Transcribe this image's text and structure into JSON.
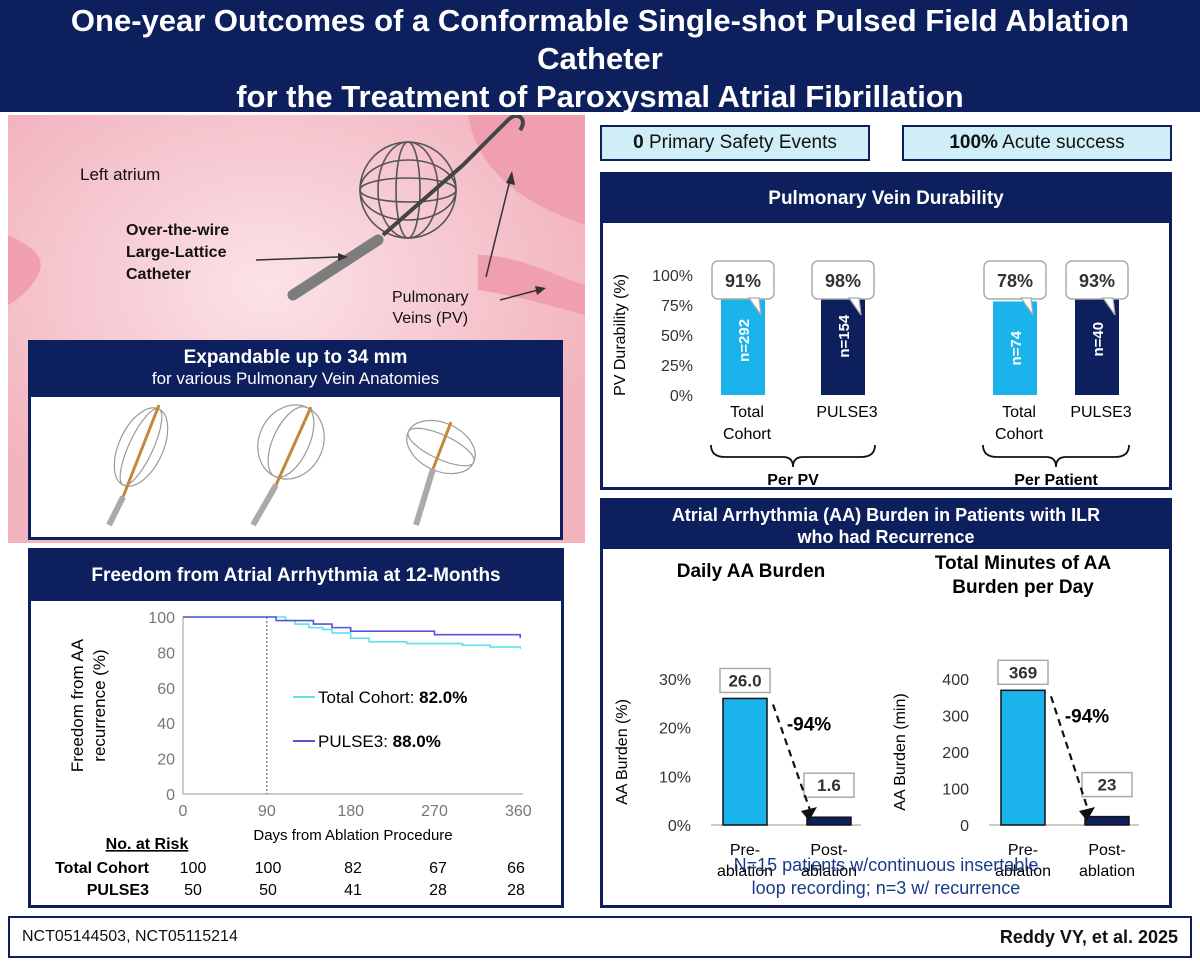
{
  "title": {
    "line1": "One-year Outcomes of a Conformable Single-shot Pulsed Field Ablation",
    "line2": "Catheter",
    "line3": "for the Treatment of Paroxysmal Atrial Fibrillation"
  },
  "illustration": {
    "left_atrium": "Left atrium",
    "catheter_line1": "Over-the-wire",
    "catheter_line2": "Large-Lattice",
    "catheter_line3": "Catheter",
    "pv_line1": "Pulmonary",
    "pv_line2": "Veins (PV)"
  },
  "expandable": {
    "heading": "Expandable up to 34 mm",
    "subheading": "for various Pulmonary Vein Anatomies"
  },
  "stats": {
    "safety_value": "0",
    "safety_label": "Primary Safety Events",
    "acute_value": "100%",
    "acute_label": "Acute success"
  },
  "footer": {
    "trials": "NCT05144503, NCT05115214",
    "citation": "Reddy VY, et al. 2025"
  },
  "colors": {
    "navy": "#0d1f5c",
    "light_blue": "#1ab3ec",
    "cyan_line": "#5fe0ec",
    "purple_line": "#5a55d8"
  },
  "chart_data": [
    {
      "type": "bar",
      "title": "Pulmonary Vein Durability",
      "ylabel": "PV Durability (%)",
      "ylim": [
        0,
        100
      ],
      "yticks": [
        "100%",
        "75%",
        "50%",
        "25%",
        "0%"
      ],
      "groups": [
        {
          "label": "Per PV",
          "bars": [
            {
              "name_line1": "Total",
              "name_line2": "Cohort",
              "value": 91,
              "value_label": "91%",
              "n_label": "n=292",
              "color": "light"
            },
            {
              "name_line1": "PULSE3",
              "name_line2": "",
              "value": 98,
              "value_label": "98%",
              "n_label": "n=154",
              "color": "navy"
            }
          ]
        },
        {
          "label": "Per Patient",
          "bars": [
            {
              "name_line1": "Total",
              "name_line2": "Cohort",
              "value": 78,
              "value_label": "78%",
              "n_label": "n=74",
              "color": "light"
            },
            {
              "name_line1": "PULSE3",
              "name_line2": "",
              "value": 93,
              "value_label": "93%",
              "n_label": "n=40",
              "color": "navy"
            }
          ]
        }
      ]
    },
    {
      "type": "line",
      "title": "Freedom from Atrial Arrhythmia at 12-Months",
      "ylabel_line1": "Freedom from AA",
      "ylabel_line2": "recurrence (%)",
      "xlabel": "Days from Ablation Procedure",
      "xlim": [
        0,
        365
      ],
      "ylim": [
        0,
        100
      ],
      "xticks": [
        0,
        90,
        180,
        270,
        360
      ],
      "yticks": [
        0,
        20,
        40,
        60,
        80,
        100
      ],
      "blanking_day": 90,
      "series": [
        {
          "name": "Total Cohort",
          "final_label": "82.0%",
          "color": "#5fe0ec",
          "x": [
            0,
            90,
            110,
            120,
            135,
            150,
            160,
            180,
            200,
            240,
            270,
            300,
            330,
            362
          ],
          "y": [
            100,
            100,
            98,
            96,
            94,
            93,
            91,
            88,
            86,
            85,
            85,
            84,
            83,
            82
          ]
        },
        {
          "name": "PULSE3",
          "final_label": "88.0%",
          "color": "#5a55d8",
          "x": [
            0,
            90,
            100,
            120,
            140,
            160,
            180,
            200,
            230,
            270,
            300,
            340,
            362
          ],
          "y": [
            100,
            100,
            98,
            98,
            96,
            94,
            92,
            92,
            92,
            90,
            90,
            90,
            88
          ]
        }
      ],
      "risk_table": {
        "heading": "No. at Risk",
        "rows": [
          {
            "label": "Total Cohort",
            "values": [
              "100",
              "100",
              "82",
              "67",
              "66"
            ]
          },
          {
            "label": "PULSE3",
            "values": [
              "50",
              "50",
              "41",
              "28",
              "28"
            ]
          }
        ]
      }
    },
    {
      "type": "bar",
      "section_title_line1": "Atrial Arrhythmia (AA) Burden in Patients with ILR",
      "section_title_line2": "who had Recurrence",
      "title": "Daily AA Burden",
      "ylabel": "AA Burden (%)",
      "ylim": [
        0,
        30
      ],
      "yticks": [
        "30%",
        "20%",
        "10%",
        "0%"
      ],
      "categories": [
        [
          "Pre-",
          "ablation"
        ],
        [
          "Post-",
          "ablation"
        ]
      ],
      "values": [
        26.0,
        1.6
      ],
      "value_labels": [
        "26.0",
        "1.6"
      ],
      "change": "-94%"
    },
    {
      "type": "bar",
      "title_line1": "Total Minutes of AA",
      "title_line2": "Burden per Day",
      "ylabel": "AA Burden (min)",
      "ylim": [
        0,
        400
      ],
      "yticks": [
        "400",
        "300",
        "200",
        "100",
        "0"
      ],
      "categories": [
        [
          "Pre-",
          "ablation"
        ],
        [
          "Post-",
          "ablation"
        ]
      ],
      "values": [
        369,
        23
      ],
      "value_labels": [
        "369",
        "23"
      ],
      "change": "-94%",
      "note_line1": "N=15 patients w/continuous insertable",
      "note_line2": "loop recording; n=3 w/ recurrence"
    }
  ]
}
